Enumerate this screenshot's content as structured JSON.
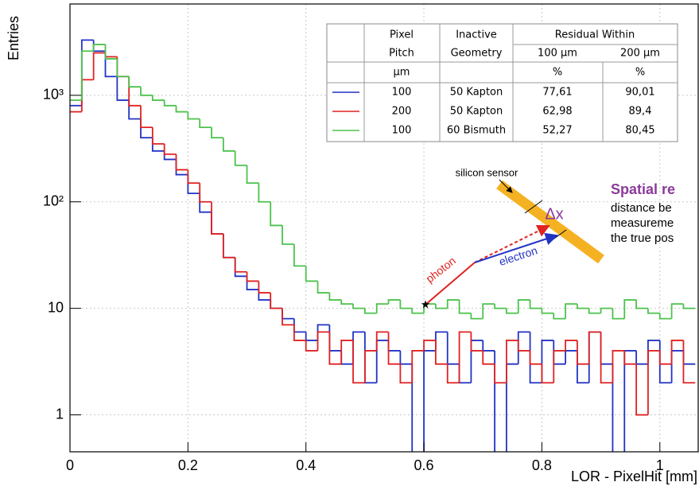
{
  "chart_data": {
    "type": "histogram",
    "y_label": "Entries",
    "x_label": "LOR - PixelHit [mm]",
    "log_y": true,
    "grid": true,
    "xlim": [
      0,
      1.065
    ],
    "ylim": [
      0.45,
      7200
    ],
    "xticks": [
      0,
      0.2,
      0.4,
      0.6,
      0.8,
      1
    ],
    "yticks": [
      1,
      10,
      {
        "value": 100,
        "label": "10²"
      },
      {
        "value": 1000,
        "label": "10³"
      }
    ],
    "bins": [
      0,
      0.02,
      0.04,
      0.06,
      0.08,
      0.1,
      0.12,
      0.14,
      0.16,
      0.18,
      0.2,
      0.22,
      0.24,
      0.26,
      0.28,
      0.3,
      0.32,
      0.34,
      0.36,
      0.38,
      0.4,
      0.42,
      0.44,
      0.46,
      0.48,
      0.5,
      0.52,
      0.54,
      0.56,
      0.58,
      0.6,
      0.62,
      0.64,
      0.66,
      0.68,
      0.7,
      0.72,
      0.74,
      0.76,
      0.78,
      0.8,
      0.82,
      0.84,
      0.86,
      0.88,
      0.9,
      0.92,
      0.94,
      0.96,
      0.98,
      1,
      1.02,
      1.04,
      1.06
    ],
    "series": [
      {
        "color": "#2233c4",
        "values": [
          800,
          3300,
          2600,
          1500,
          900,
          600,
          400,
          300,
          250,
          180,
          120,
          80,
          50,
          30,
          20,
          15,
          12,
          10,
          8,
          6,
          5,
          7,
          4,
          3,
          6,
          2,
          5,
          4,
          3,
          0,
          4,
          6,
          3,
          2,
          5,
          4,
          0,
          3,
          6,
          2,
          5,
          3,
          4,
          2,
          6,
          3,
          0,
          4,
          3,
          5,
          2,
          4,
          3
        ]
      },
      {
        "color": "#e02222",
        "values": [
          700,
          1400,
          2500,
          2300,
          1500,
          800,
          500,
          350,
          280,
          200,
          150,
          100,
          50,
          30,
          22,
          18,
          14,
          10,
          7,
          5,
          4,
          6,
          3,
          5,
          2,
          4,
          6,
          3,
          2,
          4,
          5,
          3,
          2,
          6,
          4,
          3,
          2,
          5,
          4,
          3,
          2,
          4,
          5,
          3,
          6,
          2,
          4,
          3,
          1,
          4,
          3,
          5,
          2
        ]
      },
      {
        "color": "#4cc24c",
        "values": [
          900,
          2600,
          3000,
          2200,
          1500,
          1200,
          1000,
          900,
          800,
          700,
          600,
          500,
          400,
          300,
          220,
          150,
          100,
          60,
          40,
          25,
          18,
          14,
          12,
          11,
          10,
          9,
          11,
          12,
          10,
          9,
          11,
          10,
          12,
          9,
          8,
          11,
          10,
          9,
          12,
          10,
          9,
          8,
          11,
          10,
          9,
          10,
          8,
          12,
          10,
          9,
          8,
          11,
          10
        ]
      }
    ],
    "annotations": {
      "sensor": "silicon sensor",
      "photon": "photon",
      "electron": "electron",
      "dx": "Δx",
      "heading": "Spatial re",
      "line1": "distance be",
      "line2": "measureme",
      "line3": "the true pos"
    }
  },
  "legend_table": {
    "header1": [
      "Pixel",
      "Inactive",
      "Residual Within"
    ],
    "header2": [
      "Pitch",
      "Geometry",
      "100 µm",
      "200 µm"
    ],
    "units": {
      "pitch": "µm",
      "r100": "%",
      "r200": "%"
    },
    "rows": [
      [
        "100",
        "50 Kapton",
        "77,61",
        "90,01"
      ],
      [
        "200",
        "50 Kapton",
        "62,98",
        "89,4"
      ],
      [
        "100",
        "60 Bismuth",
        "52,27",
        "80,45"
      ]
    ]
  }
}
